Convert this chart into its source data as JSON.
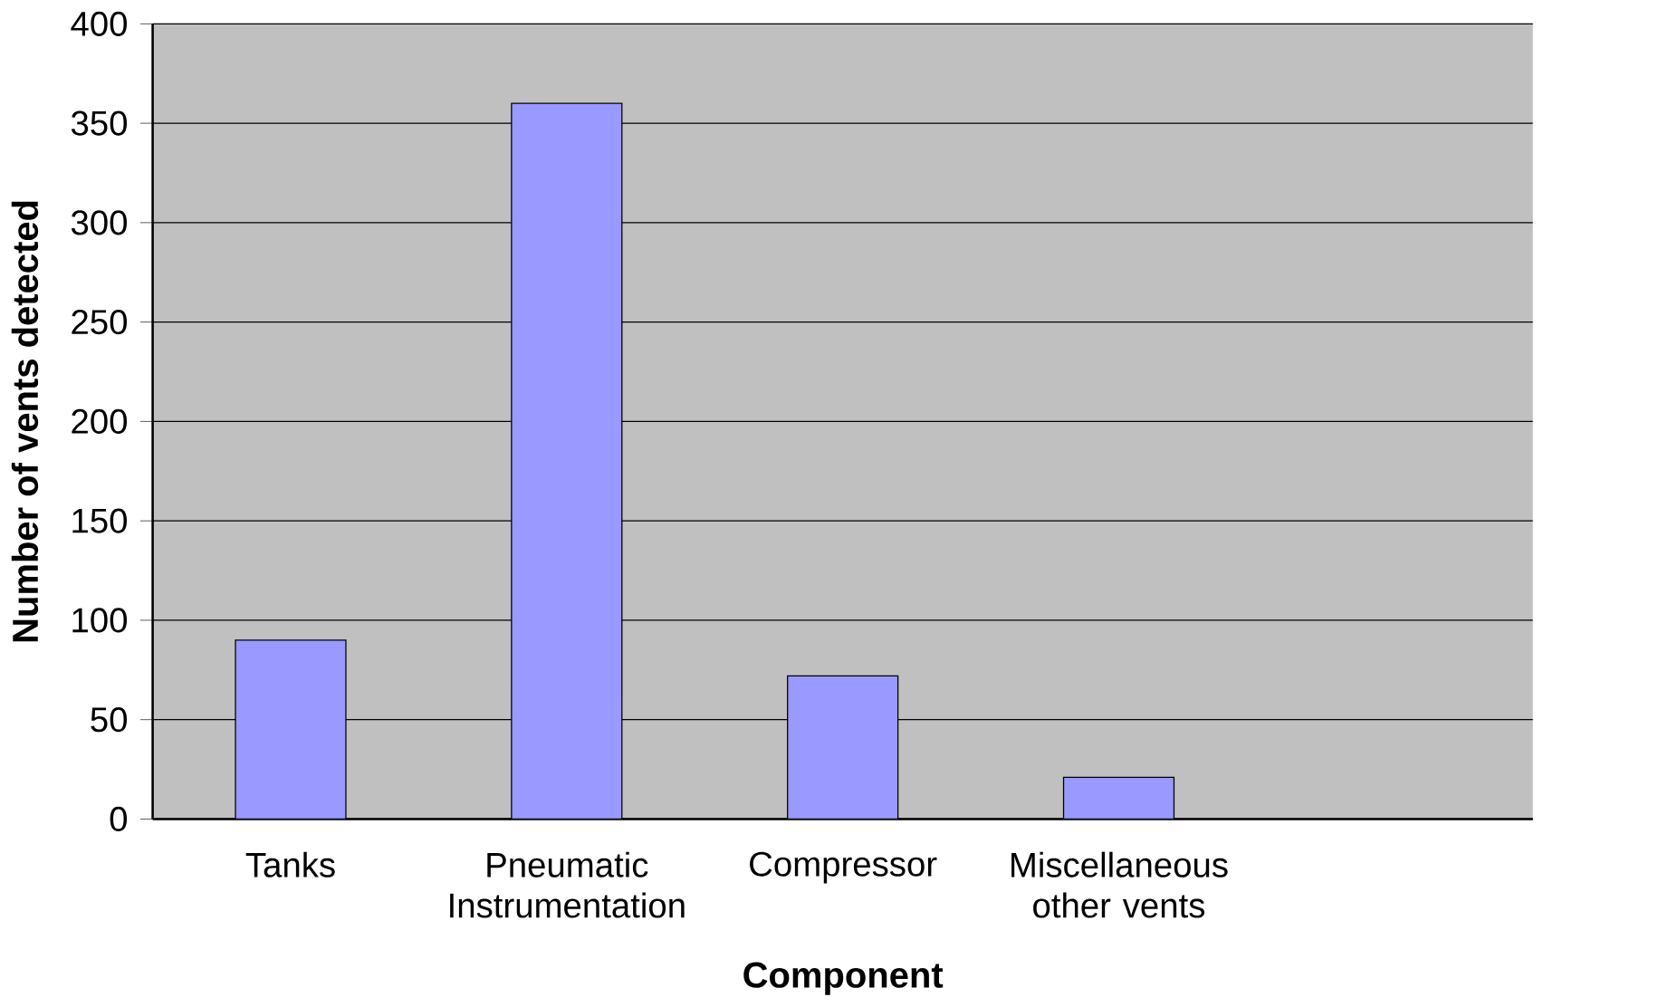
{
  "chart_data": {
    "type": "bar",
    "xlabel": "Component",
    "ylabel": "Number of vents detected",
    "categories": [
      "Tanks",
      "Pneumatic Instrumentation",
      "Compressor",
      "Miscellaneous other vents",
      null
    ],
    "values": [
      90,
      360,
      72,
      21,
      null
    ],
    "color": "#9999ff",
    "ylim": [
      0,
      400
    ],
    "yticks": [
      0,
      50,
      100,
      150,
      200,
      250,
      300,
      350,
      400
    ],
    "grid": "y"
  }
}
